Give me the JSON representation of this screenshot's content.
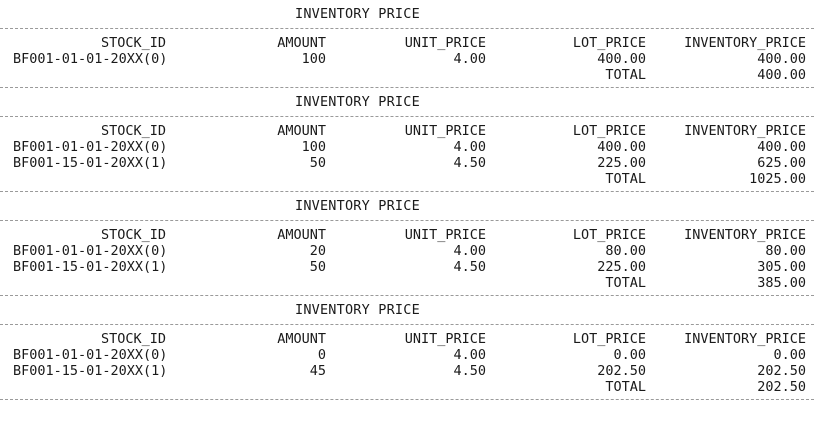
{
  "columns": {
    "stock_id": "STOCK_ID",
    "amount": "AMOUNT",
    "unit_price": "UNIT_PRICE",
    "lot_price": "LOT_PRICE",
    "inventory_price": "INVENTORY_PRICE"
  },
  "reports": [
    {
      "title": "INVENTORY PRICE",
      "rows": [
        {
          "stock_id": "BF001-01-01-20XX(0)",
          "amount": "100",
          "unit_price": "4.00",
          "lot_price": "400.00",
          "inventory_price": "400.00"
        }
      ],
      "total_label": "TOTAL",
      "total": "400.00"
    },
    {
      "title": "INVENTORY PRICE",
      "rows": [
        {
          "stock_id": "BF001-01-01-20XX(0)",
          "amount": "100",
          "unit_price": "4.00",
          "lot_price": "400.00",
          "inventory_price": "400.00"
        },
        {
          "stock_id": "BF001-15-01-20XX(1)",
          "amount": "50",
          "unit_price": "4.50",
          "lot_price": "225.00",
          "inventory_price": "625.00"
        }
      ],
      "total_label": "TOTAL",
      "total": "1025.00"
    },
    {
      "title": "INVENTORY PRICE",
      "rows": [
        {
          "stock_id": "BF001-01-01-20XX(0)",
          "amount": "20",
          "unit_price": "4.00",
          "lot_price": "80.00",
          "inventory_price": "80.00"
        },
        {
          "stock_id": "BF001-15-01-20XX(1)",
          "amount": "50",
          "unit_price": "4.50",
          "lot_price": "225.00",
          "inventory_price": "305.00"
        }
      ],
      "total_label": "TOTAL",
      "total": "385.00"
    },
    {
      "title": "INVENTORY PRICE",
      "rows": [
        {
          "stock_id": "BF001-01-01-20XX(0)",
          "amount": "0",
          "unit_price": "4.00",
          "lot_price": "0.00",
          "inventory_price": "0.00"
        },
        {
          "stock_id": "BF001-15-01-20XX(1)",
          "amount": "45",
          "unit_price": "4.50",
          "lot_price": "202.50",
          "inventory_price": "202.50"
        }
      ],
      "total_label": "TOTAL",
      "total": "202.50"
    }
  ]
}
